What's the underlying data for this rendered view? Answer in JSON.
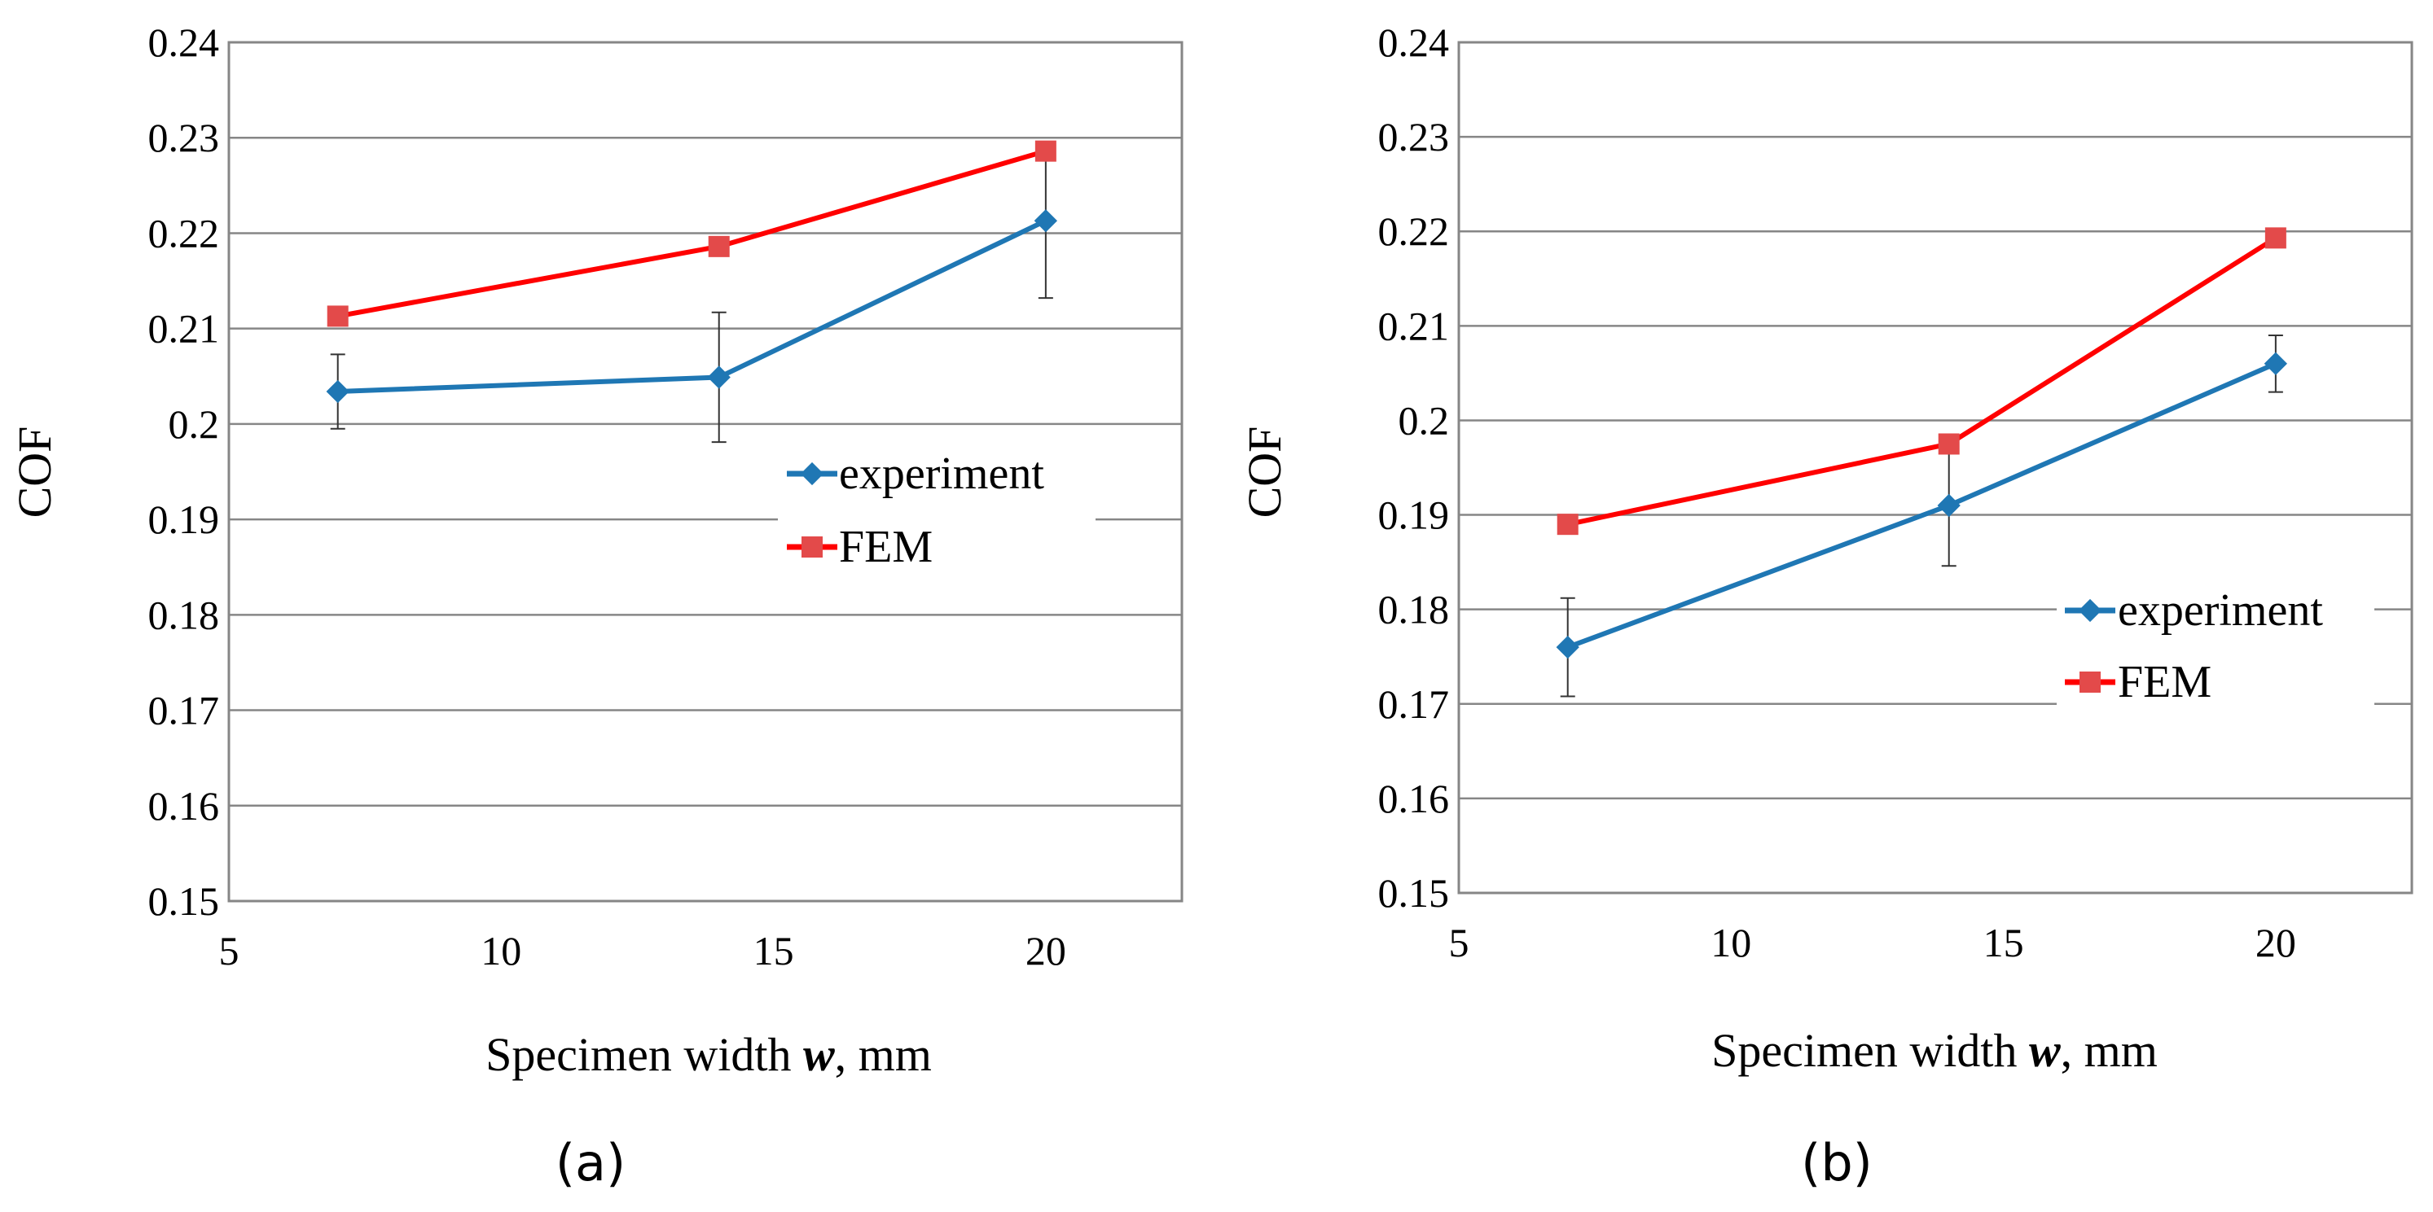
{
  "chart_data": [
    {
      "type": "line",
      "panel_label": "(a)",
      "xlabel_text": "Specimen width ",
      "xlabel_var": "w",
      "xlabel_unit": ", mm",
      "ylabel": "COF",
      "xlim": [
        5,
        22.5
      ],
      "ylim": [
        0.15,
        0.24
      ],
      "xticks": [
        5,
        10,
        15,
        20
      ],
      "xtick_labels": [
        "5",
        "10",
        "15",
        "20"
      ],
      "yticks": [
        0.15,
        0.16,
        0.17,
        0.18,
        0.19,
        0.2,
        0.21,
        0.22,
        0.23,
        0.24
      ],
      "ytick_labels": [
        "0.15",
        "0.16",
        "0.17",
        "0.18",
        "0.19",
        "0.2",
        "0.21",
        "0.22",
        "0.23",
        "0.24"
      ],
      "grid": "horizontal",
      "legend_position": "center-right",
      "series": [
        {
          "name": "experiment",
          "marker": "diamond",
          "color": "#1f77b4",
          "x": [
            7,
            14,
            20
          ],
          "y": [
            0.2034,
            0.2049,
            0.2213
          ],
          "error": [
            0.0039,
            0.0068,
            0.0081
          ]
        },
        {
          "name": "FEM",
          "marker": "square",
          "color": "#ff0000",
          "x": [
            7,
            14,
            20
          ],
          "y": [
            0.2113,
            0.2186,
            0.2286
          ]
        }
      ]
    },
    {
      "type": "line",
      "panel_label": "(b)",
      "xlabel_text": "Specimen width ",
      "xlabel_var": "w",
      "xlabel_unit": ", mm",
      "ylabel": "COF",
      "xlim": [
        5,
        22.5
      ],
      "ylim": [
        0.15,
        0.24
      ],
      "xticks": [
        5,
        10,
        15,
        20
      ],
      "xtick_labels": [
        "5",
        "10",
        "15",
        "20"
      ],
      "yticks": [
        0.15,
        0.16,
        0.17,
        0.18,
        0.19,
        0.2,
        0.21,
        0.22,
        0.23,
        0.24
      ],
      "ytick_labels": [
        "0.15",
        "0.16",
        "0.17",
        "0.18",
        "0.19",
        "0.2",
        "0.21",
        "0.22",
        "0.23",
        "0.24"
      ],
      "grid": "horizontal",
      "legend_position": "bottom-right",
      "series": [
        {
          "name": "experiment",
          "marker": "diamond",
          "color": "#1f77b4",
          "x": [
            7,
            14,
            20
          ],
          "y": [
            0.176,
            0.191,
            0.206
          ],
          "error": [
            0.0052,
            0.0064,
            0.003
          ]
        },
        {
          "name": "FEM",
          "marker": "square",
          "color": "#ff0000",
          "x": [
            7,
            14,
            20
          ],
          "y": [
            0.189,
            0.1975,
            0.2193
          ]
        }
      ]
    }
  ]
}
